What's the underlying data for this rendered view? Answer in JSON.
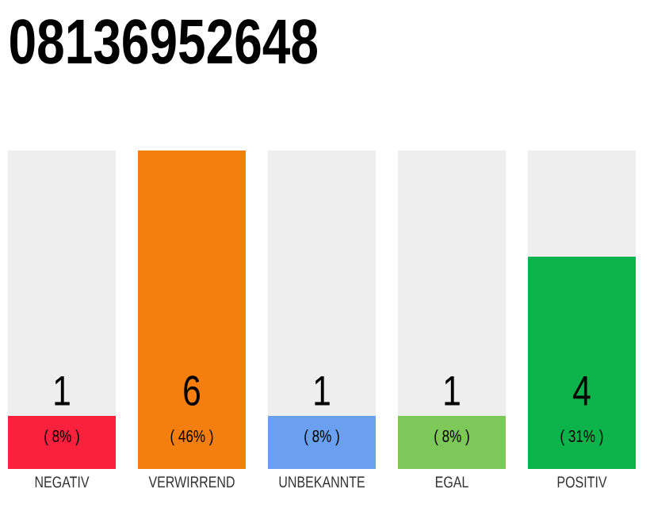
{
  "chart_data": {
    "type": "bar",
    "title": "08136952648",
    "stacked": true,
    "categories": [
      "NEGATIV",
      "VERWIRREND",
      "UNBEKANNTE",
      "EGAL",
      "POSITIV"
    ],
    "series": [
      {
        "colors": [
          "#f9213e",
          "#f47f0f",
          "#6b9ff0",
          "#7ec85a",
          "#0bb34a"
        ],
        "values": [
          1,
          6,
          1,
          1,
          4
        ],
        "value_labels": [
          "1",
          "6",
          "1",
          "1",
          "4"
        ]
      },
      {
        "color": "#eeeeee",
        "values": [
          5,
          0,
          5,
          5,
          2
        ]
      }
    ],
    "annotations": [
      "( 8% )",
      "( 46% )",
      "( 8% )",
      "( 8% )",
      "( 31% )"
    ]
  }
}
